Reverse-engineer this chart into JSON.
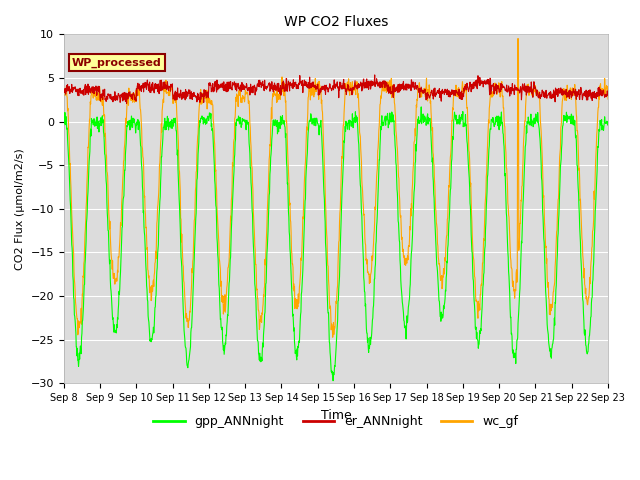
{
  "title": "WP CO2 Fluxes",
  "xlabel": "Time",
  "ylabel": "CO2 Flux (μmol/m2/s)",
  "ylim": [
    -30,
    10
  ],
  "yticks": [
    -30,
    -25,
    -20,
    -15,
    -10,
    -5,
    0,
    5,
    10
  ],
  "start_day": 8,
  "n_days": 15,
  "points_per_day": 96,
  "gpp_color": "#00FF00",
  "er_color": "#CC0000",
  "wc_color": "#FFA500",
  "background_color": "#DCDCDC",
  "legend_label_text": "WP_processed",
  "legend_text_color": "#8B0000",
  "legend_bg": "#FFFF99",
  "legend_edge": "#8B0000",
  "line_width": 0.8,
  "fig_width": 6.4,
  "fig_height": 4.8,
  "dpi": 100,
  "gpp_depths": [
    27,
    24,
    25,
    28,
    26,
    27,
    27,
    29,
    26,
    24,
    23,
    25,
    27,
    27,
    26
  ],
  "wc_depths": [
    27,
    21,
    23,
    26,
    24,
    26,
    25,
    28,
    22,
    20,
    22,
    25,
    23,
    25,
    24
  ],
  "day_center": [
    0.42,
    0.42,
    0.42,
    0.42,
    0.42,
    0.42,
    0.42,
    0.42,
    0.42,
    0.42,
    0.42,
    0.42,
    0.42,
    0.42,
    0.42
  ],
  "wc_spike_day": 12,
  "wc_spike_val": 9.5
}
